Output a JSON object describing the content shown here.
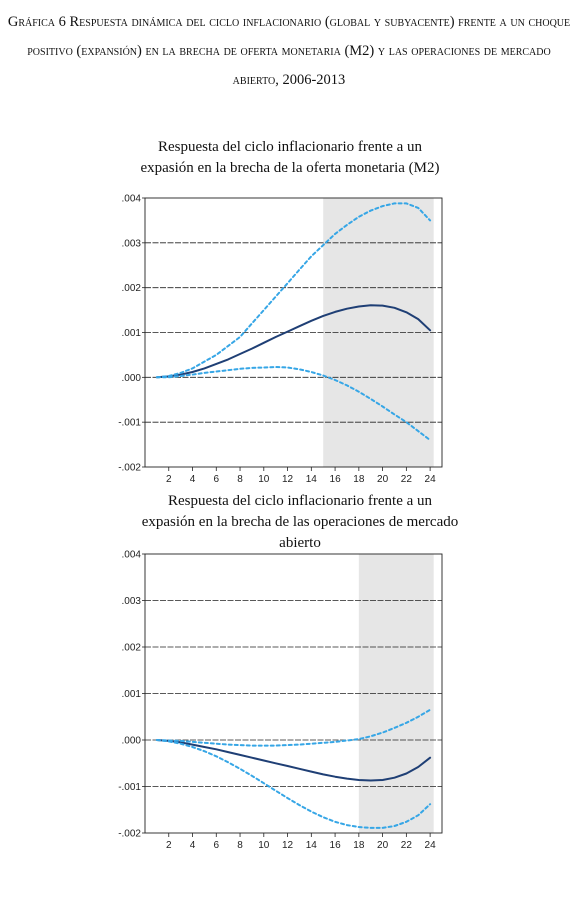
{
  "figure_title": "Gráfica 6 Respuesta dinámica del ciclo inflacionario (global y subyacente) frente a un choque positivo (expansión) en la brecha de oferta monetaria (M2) y las operaciones de mercado abierto, 2006-2013",
  "colors": {
    "response": "#1f3f75",
    "band": "#36a6e6",
    "shade": "#e6e6e6",
    "grid": "#222222"
  },
  "chart_data": [
    {
      "type": "line",
      "title_lines": [
        "Respuesta del ciclo inflacionario frente a un",
        "expasión en la brecha de la oferta monetaria (M2)"
      ],
      "x": [
        1,
        2,
        3,
        4,
        5,
        6,
        7,
        8,
        9,
        10,
        11,
        12,
        13,
        14,
        15,
        16,
        17,
        18,
        19,
        20,
        21,
        22,
        23,
        24
      ],
      "xticks": [
        "2",
        "4",
        "6",
        "8",
        "10",
        "12",
        "14",
        "16",
        "18",
        "20",
        "22",
        "24"
      ],
      "yticks": [
        ".004",
        ".003",
        ".002",
        ".001",
        ".000",
        "-.001",
        "-.002"
      ],
      "ylim": [
        -0.002,
        0.004
      ],
      "xlim": [
        0,
        25
      ],
      "shaded_x": [
        15,
        24.3
      ],
      "series": [
        {
          "role": "response",
          "style": "solid",
          "values": [
            0.0,
            2e-05,
            6e-05,
            0.00012,
            0.0002,
            0.0003,
            0.0004,
            0.00052,
            0.00064,
            0.00077,
            0.0009,
            0.00102,
            0.00114,
            0.00126,
            0.00137,
            0.00146,
            0.00153,
            0.00158,
            0.00161,
            0.0016,
            0.00155,
            0.00145,
            0.0013,
            0.00105
          ]
        },
        {
          "role": "upper",
          "style": "dashed",
          "values": [
            0.0,
            3e-05,
            0.0001,
            0.0002,
            0.00035,
            0.0005,
            0.0007,
            0.0009,
            0.0012,
            0.0015,
            0.0018,
            0.0021,
            0.0024,
            0.0027,
            0.00295,
            0.0032,
            0.0034,
            0.00358,
            0.00372,
            0.00382,
            0.00388,
            0.00388,
            0.00378,
            0.0035
          ]
        },
        {
          "role": "lower",
          "style": "dashed",
          "values": [
            0.0,
            0.0,
            3e-05,
            6e-05,
            0.0001,
            0.00013,
            0.00016,
            0.00019,
            0.00021,
            0.00022,
            0.00023,
            0.00022,
            0.00018,
            0.00012,
            4e-05,
            -6e-05,
            -0.00018,
            -0.00032,
            -0.00048,
            -0.00065,
            -0.00083,
            -0.001,
            -0.0012,
            -0.0014
          ]
        }
      ]
    },
    {
      "type": "line",
      "title_lines": [
        "Respuesta del ciclo inflacionario frente a un",
        "expasión en la brecha de las operaciones de mercado abierto"
      ],
      "x": [
        1,
        2,
        3,
        4,
        5,
        6,
        7,
        8,
        9,
        10,
        11,
        12,
        13,
        14,
        15,
        16,
        17,
        18,
        19,
        20,
        21,
        22,
        23,
        24
      ],
      "xticks": [
        "2",
        "4",
        "6",
        "8",
        "10",
        "12",
        "14",
        "16",
        "18",
        "20",
        "22",
        "24"
      ],
      "yticks": [
        ".004",
        ".003",
        ".002",
        ".001",
        ".000",
        "-.001",
        "-.002"
      ],
      "ylim": [
        -0.002,
        0.004
      ],
      "xlim": [
        0,
        25
      ],
      "shaded_x": [
        18,
        24.3
      ],
      "series": [
        {
          "role": "response",
          "style": "solid",
          "values": [
            0.0,
            -2e-05,
            -5e-05,
            -0.0001,
            -0.00015,
            -0.0002,
            -0.00026,
            -0.00032,
            -0.00038,
            -0.00044,
            -0.0005,
            -0.00056,
            -0.00062,
            -0.00068,
            -0.00074,
            -0.00079,
            -0.00083,
            -0.00086,
            -0.00087,
            -0.00086,
            -0.00081,
            -0.00072,
            -0.00058,
            -0.00038
          ]
        },
        {
          "role": "upper",
          "style": "dashed",
          "values": [
            0.0,
            -1e-05,
            -2e-05,
            -4e-05,
            -6e-05,
            -8e-05,
            -0.0001,
            -0.00011,
            -0.00012,
            -0.00012,
            -0.00012,
            -0.00011,
            -0.0001,
            -8e-05,
            -6e-05,
            -4e-05,
            -1e-05,
            2e-05,
            8e-05,
            0.00016,
            0.00026,
            0.00037,
            0.0005,
            0.00065
          ]
        },
        {
          "role": "lower",
          "style": "dashed",
          "values": [
            0.0,
            -3e-05,
            -8e-05,
            -0.00015,
            -0.00024,
            -0.00035,
            -0.00048,
            -0.00062,
            -0.00077,
            -0.00093,
            -0.00109,
            -0.00125,
            -0.0014,
            -0.00154,
            -0.00166,
            -0.00176,
            -0.00183,
            -0.00187,
            -0.00189,
            -0.00189,
            -0.00185,
            -0.00176,
            -0.00162,
            -0.00138
          ]
        }
      ]
    }
  ]
}
